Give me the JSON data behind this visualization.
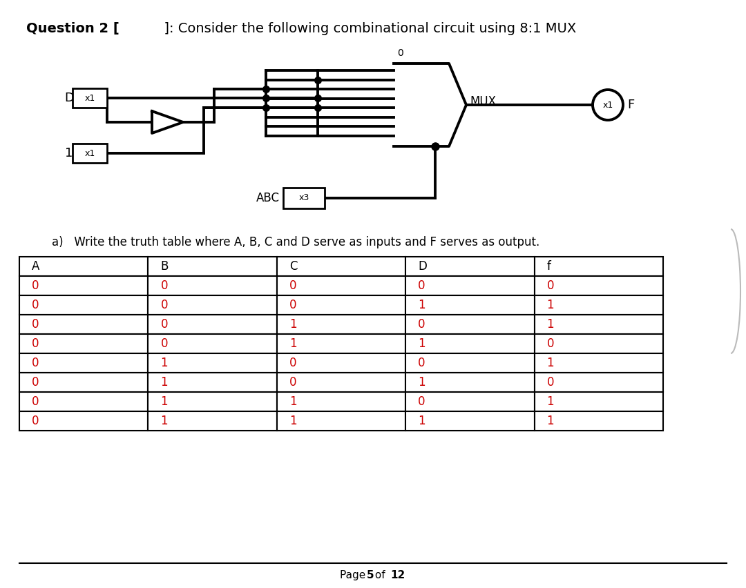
{
  "title_bold": "Question 2 [",
  "title_gap": "          ",
  "title_rest": "]: Consider the following combinational circuit using 8:1 MUX",
  "subtitle": "a)   Write the truth table where A, B, C and D serve as inputs and F serves as output.",
  "page_footer_plain": "Page ",
  "page_footer_bold1": "5",
  "page_footer_mid": " of ",
  "page_footer_bold2": "12",
  "table_headers": [
    "A",
    "B",
    "C",
    "D",
    "f"
  ],
  "table_data": [
    [
      "0",
      "0",
      "0",
      "0",
      "0"
    ],
    [
      "0",
      "0",
      "0",
      "1",
      "1"
    ],
    [
      "0",
      "0",
      "1",
      "0",
      "1"
    ],
    [
      "0",
      "0",
      "1",
      "1",
      "0"
    ],
    [
      "0",
      "1",
      "0",
      "0",
      "1"
    ],
    [
      "0",
      "1",
      "0",
      "1",
      "0"
    ],
    [
      "0",
      "1",
      "1",
      "0",
      "1"
    ],
    [
      "0",
      "1",
      "1",
      "1",
      "1"
    ]
  ],
  "bg_color": "#ffffff",
  "text_color": "#000000",
  "table_data_color": "#cc0000",
  "table_header_color": "#000000",
  "circuit_color": "#000000"
}
